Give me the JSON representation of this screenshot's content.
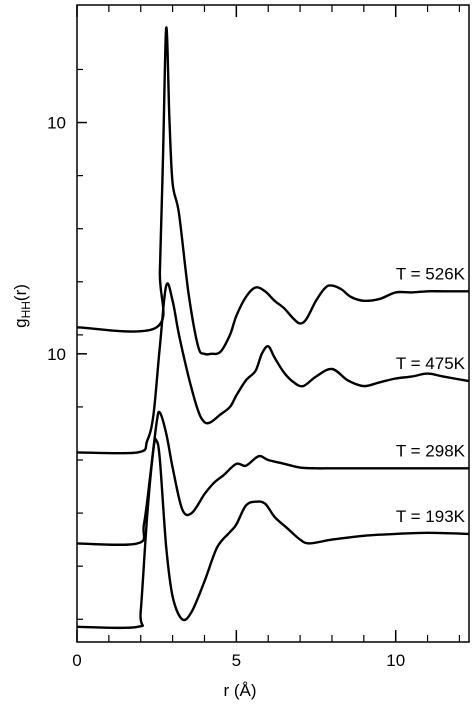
{
  "chart_data": {
    "type": "line",
    "title": "",
    "xlabel": "r (Å)",
    "ylabel": "g_HH(r)",
    "ylabel_parts": {
      "base": "g",
      "sub": "HH",
      "suffix": "(r)"
    },
    "xlim": [
      0,
      12.3
    ],
    "x_ticks_major": [
      0,
      5,
      10
    ],
    "x_ticks_minor": [
      1,
      2,
      3,
      4,
      6,
      7,
      8,
      9,
      11,
      12
    ],
    "y_tick_labels": [
      {
        "label": "10",
        "level": 10.9
      },
      {
        "label": "10",
        "level": 4.8
      }
    ],
    "grid": false,
    "series": [
      {
        "name": "T = 526K",
        "x": [
          0,
          2.5,
          2.6,
          2.7,
          2.8,
          2.9,
          3.0,
          3.2,
          3.5,
          3.8,
          4.0,
          4.2,
          4.5,
          4.8,
          5.0,
          5.3,
          5.6,
          5.9,
          6.2,
          6.5,
          6.8,
          7.0,
          7.2,
          7.5,
          7.8,
          8.0,
          8.3,
          8.6,
          9.0,
          9.5,
          10.0,
          10.5,
          11.0,
          11.5,
          12.3
        ],
        "y": [
          5.5,
          5.5,
          7.0,
          10.0,
          13.4,
          11.0,
          9.3,
          8.5,
          6.4,
          5.0,
          4.8,
          4.8,
          4.85,
          5.3,
          5.8,
          6.3,
          6.55,
          6.45,
          6.2,
          6.0,
          5.72,
          5.6,
          5.72,
          6.2,
          6.55,
          6.6,
          6.5,
          6.3,
          6.2,
          6.25,
          6.42,
          6.42,
          6.45,
          6.45,
          6.45
        ]
      },
      {
        "name": "T = 475K",
        "x": [
          0,
          1.9,
          2.2,
          2.4,
          2.6,
          2.8,
          3.0,
          3.2,
          3.5,
          3.8,
          4.0,
          4.2,
          4.5,
          4.8,
          5.0,
          5.3,
          5.6,
          5.8,
          6.0,
          6.2,
          6.5,
          6.8,
          7.1,
          7.5,
          8.0,
          8.5,
          9.0,
          9.5,
          10.0,
          10.5,
          11.0,
          11.5,
          12.3
        ],
        "y": [
          2.2,
          2.2,
          2.5,
          3.2,
          5.0,
          6.6,
          6.2,
          5.3,
          4.2,
          3.3,
          3.0,
          3.0,
          3.2,
          3.4,
          3.7,
          4.1,
          4.35,
          4.8,
          5.0,
          4.7,
          4.3,
          4.05,
          3.95,
          4.2,
          4.4,
          4.1,
          3.95,
          4.05,
          4.15,
          4.2,
          4.28,
          4.2,
          4.08
        ]
      },
      {
        "name": "T = 298K",
        "x": [
          0,
          1.9,
          2.1,
          2.3,
          2.5,
          2.6,
          2.8,
          3.0,
          3.3,
          3.6,
          4.0,
          4.3,
          4.6,
          5.0,
          5.3,
          5.7,
          6.0,
          6.5,
          7.0,
          7.5,
          8.0,
          9.0,
          10.0,
          11.0,
          12.3
        ],
        "y": [
          -0.2,
          -0.2,
          0.3,
          1.6,
          3.0,
          3.25,
          2.7,
          1.8,
          0.7,
          0.6,
          1.1,
          1.4,
          1.6,
          1.9,
          1.85,
          2.1,
          2.0,
          1.9,
          1.8,
          1.78,
          1.78,
          1.78,
          1.78,
          1.78,
          1.78
        ]
      },
      {
        "name": "T = 193K",
        "x": [
          0,
          1.9,
          2.0,
          2.2,
          2.4,
          2.5,
          2.6,
          2.8,
          3.0,
          3.3,
          3.6,
          4.0,
          4.4,
          4.8,
          5.0,
          5.3,
          5.6,
          5.9,
          6.2,
          6.6,
          7.0,
          7.3,
          8.0,
          9.0,
          10.0,
          11.0,
          12.3
        ],
        "y": [
          -2.4,
          -2.4,
          -2.0,
          0.5,
          2.3,
          2.5,
          2.0,
          -0.3,
          -1.6,
          -2.2,
          -2.0,
          -1.2,
          -0.3,
          0.1,
          0.3,
          0.8,
          0.9,
          0.85,
          0.5,
          0.2,
          -0.1,
          -0.2,
          -0.1,
          0.0,
          0.05,
          0.08,
          0.05
        ]
      }
    ]
  }
}
